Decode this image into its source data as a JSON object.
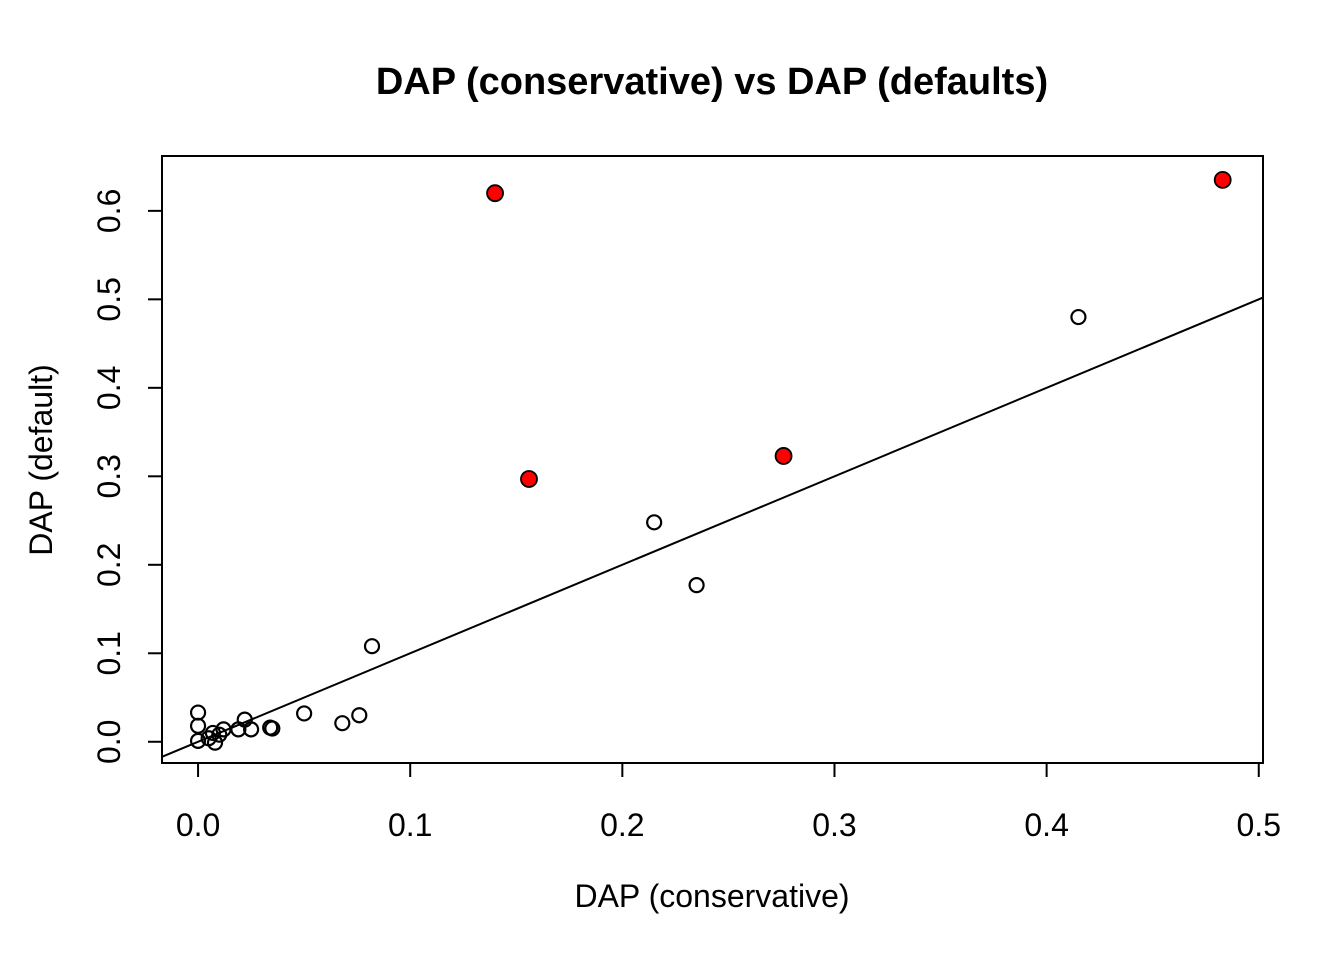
{
  "title": "DAP (conservative) vs DAP (defaults)",
  "colors": {
    "background": "#ffffff",
    "foreground": "#000000",
    "highlight": "#ff0000"
  },
  "chart_data": {
    "type": "scatter",
    "title": "DAP (conservative) vs DAP (defaults)",
    "xlabel": "DAP (conservative)",
    "ylabel": "DAP (default)",
    "xlim": [
      -0.017,
      0.502
    ],
    "ylim": [
      -0.024,
      0.662
    ],
    "x_ticks": [
      0.0,
      0.1,
      0.2,
      0.3,
      0.4,
      0.5
    ],
    "y_ticks": [
      0.0,
      0.1,
      0.2,
      0.3,
      0.4,
      0.5,
      0.6
    ],
    "grid": false,
    "legend": "none",
    "reference_line": {
      "slope": 1,
      "intercept": 0,
      "description": "identity line y = x"
    },
    "series": [
      {
        "name": "default-points",
        "marker": "open-circle",
        "stroke": "#000000",
        "fill": "none",
        "points": [
          [
            0.0,
            0.033
          ],
          [
            0.0,
            0.018
          ],
          [
            0.0,
            0.001
          ],
          [
            0.005,
            0.004
          ],
          [
            0.007,
            0.01
          ],
          [
            0.008,
            -0.001
          ],
          [
            0.01,
            0.008
          ],
          [
            0.012,
            0.014
          ],
          [
            0.019,
            0.014
          ],
          [
            0.022,
            0.025
          ],
          [
            0.025,
            0.014
          ],
          [
            0.034,
            0.016
          ],
          [
            0.035,
            0.015
          ],
          [
            0.05,
            0.032
          ],
          [
            0.068,
            0.021
          ],
          [
            0.076,
            0.03
          ],
          [
            0.082,
            0.108
          ],
          [
            0.215,
            0.248
          ],
          [
            0.235,
            0.177
          ],
          [
            0.415,
            0.48
          ]
        ]
      },
      {
        "name": "highlighted-points",
        "marker": "filled-circle",
        "stroke": "#000000",
        "fill": "#ff0000",
        "points": [
          [
            0.14,
            0.62
          ],
          [
            0.156,
            0.297
          ],
          [
            0.276,
            0.323
          ],
          [
            0.483,
            0.635
          ]
        ]
      }
    ]
  }
}
